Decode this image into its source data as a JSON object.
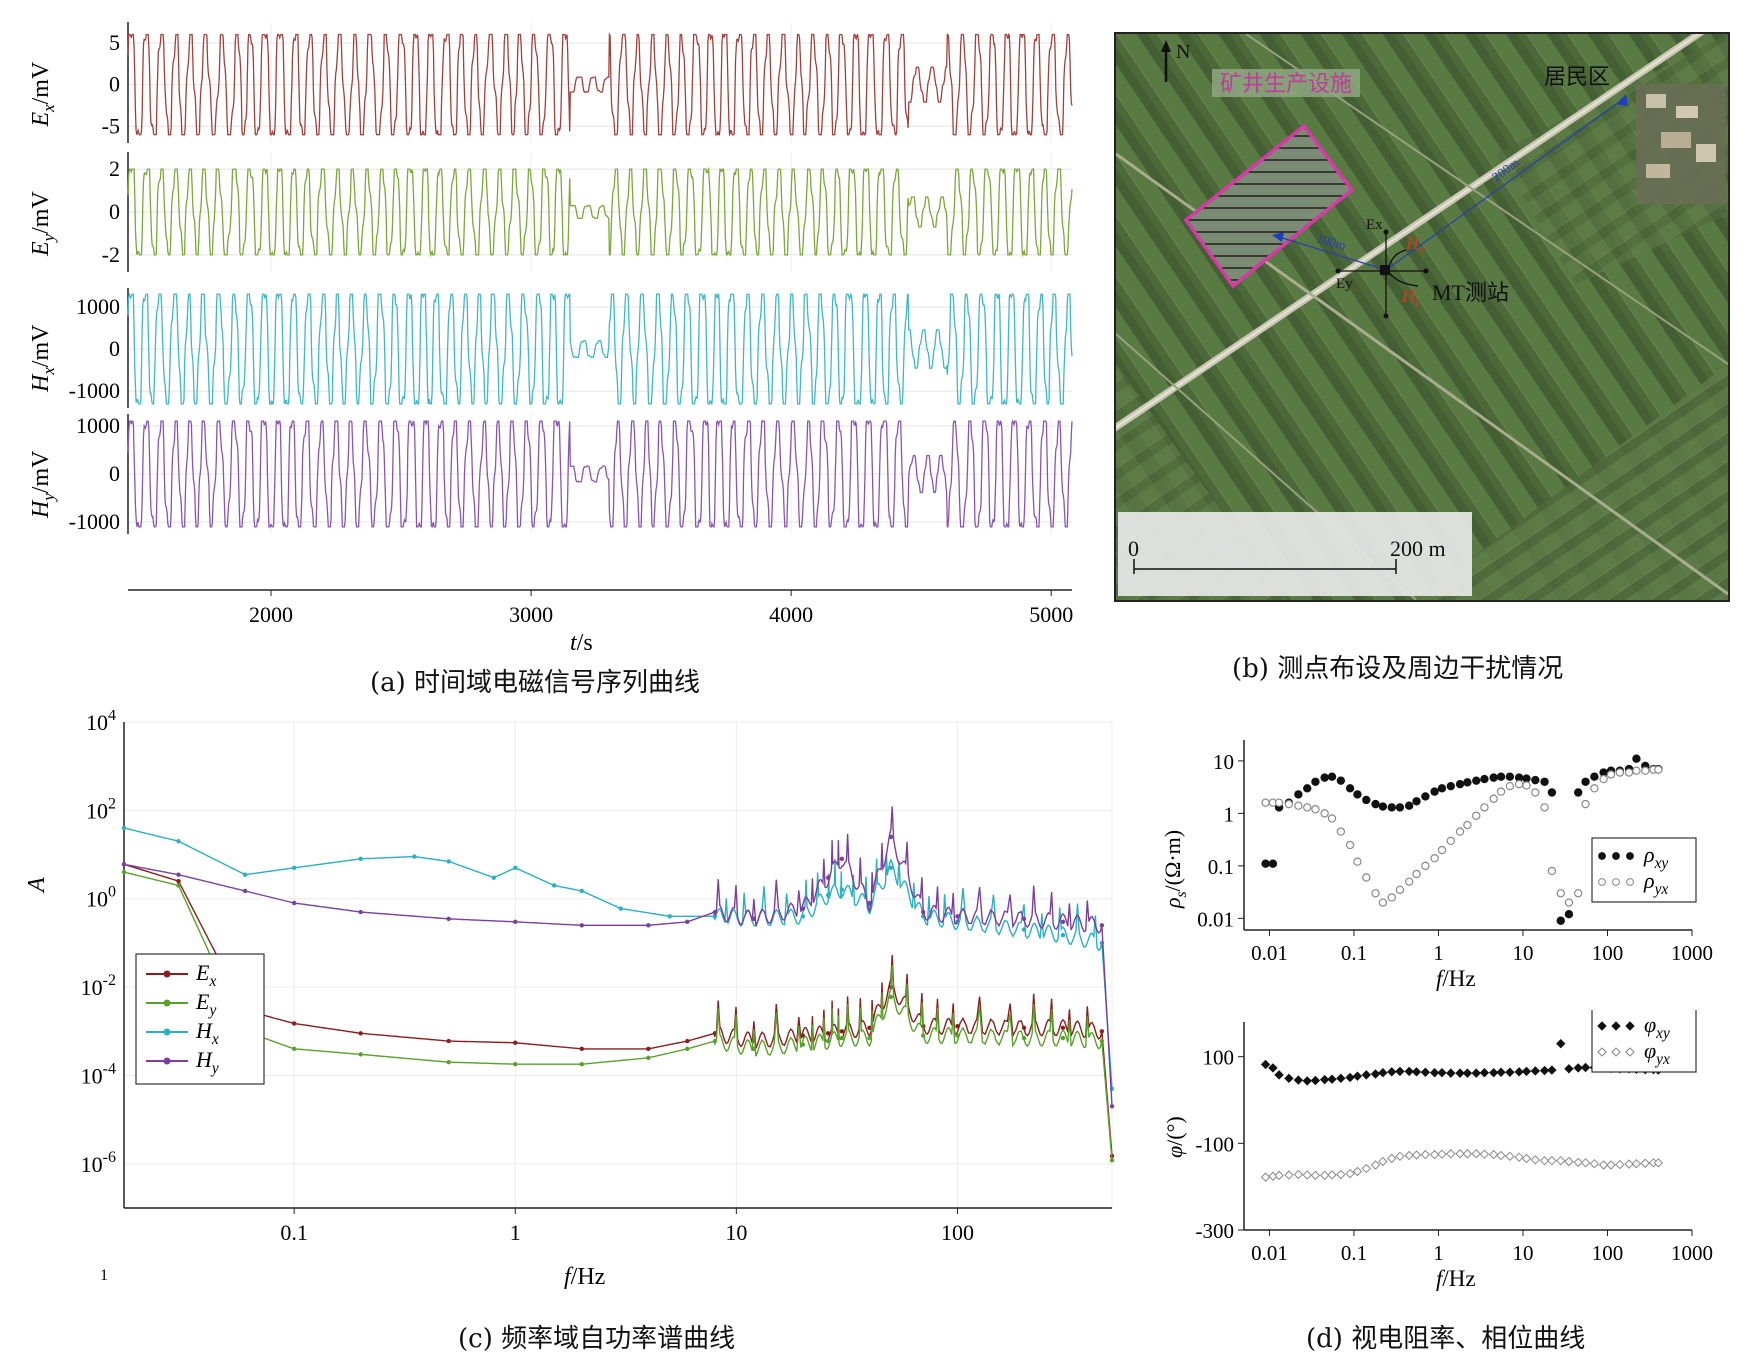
{
  "captions": {
    "a": "(a) 时间域电磁信号序列曲线",
    "b": "(b) 测点布设及周边干扰情况",
    "c": "(c) 频率域自功率谱曲线",
    "d": "(d) 视电阻率、相位曲线"
  },
  "panel_a": {
    "xlabel_italic": "t",
    "xlabel_unit": "/s",
    "x_range": [
      1450,
      5080
    ],
    "x_ticks": [
      "2000",
      "3000",
      "4000",
      "5000"
    ],
    "x_tick_values": [
      2000,
      3000,
      4000,
      5000
    ],
    "traces": [
      {
        "name": "Ex",
        "ylabel_var": "E",
        "ylabel_sub": "x",
        "ylabel_unit": "/mV",
        "ticks": [
          "5",
          "0",
          "-5"
        ],
        "tick_values": [
          5,
          0,
          -5
        ],
        "ylim": [
          -7,
          7.5
        ],
        "amplitude": 6,
        "color": "#a3403a"
      },
      {
        "name": "Ey",
        "ylabel_var": "E",
        "ylabel_sub": "y",
        "ylabel_unit": "/mV",
        "ticks": [
          "2",
          "0",
          "-2"
        ],
        "tick_values": [
          2,
          0,
          -2
        ],
        "ylim": [
          -2.8,
          2.8
        ],
        "amplitude": 2,
        "color": "#7aa83a"
      },
      {
        "name": "Hx",
        "ylabel_var": "H",
        "ylabel_sub": "x",
        "ylabel_unit": "/mV",
        "ticks": [
          "1000",
          "0",
          "-1000"
        ],
        "tick_values": [
          1000,
          0,
          -1000
        ],
        "ylim": [
          -1400,
          1450
        ],
        "amplitude": 1300,
        "color": "#3fb8c6"
      },
      {
        "name": "Hy",
        "ylabel_var": "H",
        "ylabel_sub": "y",
        "ylabel_unit": "/mV",
        "ticks": [
          "1000",
          "0",
          "-1000"
        ],
        "tick_values": [
          1000,
          0,
          -1000
        ],
        "ylim": [
          -1250,
          1250
        ],
        "amplitude": 1100,
        "color": "#8a55b2"
      }
    ]
  },
  "panel_b": {
    "north": "N",
    "facility_label": "矿井生产设施",
    "village_label": "居民区",
    "station_label": "MT测站",
    "dist_100": "100m",
    "dist_200": "200m",
    "ex_label": "Ex",
    "ey_label": "Ey",
    "hx_var": "H",
    "hx_sub": "x",
    "hy_var": "H",
    "hy_sub": "y",
    "scale_start": "0",
    "scale_end": "200 m"
  },
  "chart_data": [
    {
      "type": "line",
      "xlabel_italic": "f",
      "xlabel_unit": "/Hz",
      "ylabel": "A",
      "xscale": "log",
      "yscale": "log",
      "xlim": [
        0.017,
        500
      ],
      "ylim": [
        1e-07,
        10000.0
      ],
      "x_ticks": [
        "0.1",
        "1",
        "10",
        "100"
      ],
      "x_tick_values": [
        0.1,
        1,
        10,
        100
      ],
      "y_ticks": [
        {
          "base": "10",
          "exp": "4",
          "value": 4
        },
        {
          "base": "10",
          "exp": "2",
          "value": 2
        },
        {
          "base": "10",
          "exp": "0",
          "value": 0
        },
        {
          "base": "10",
          "exp": "-2",
          "value": -2
        },
        {
          "base": "10",
          "exp": "-4",
          "value": -4
        },
        {
          "base": "10",
          "exp": "-6",
          "value": -6
        }
      ],
      "stray_label": "1",
      "legend_position": "bottom-left",
      "series": [
        {
          "name_var": "E",
          "name_sub": "x",
          "color": "#8b1d1d",
          "x": [
            0.017,
            0.03,
            0.06,
            0.1,
            0.2,
            0.5,
            1,
            2,
            4,
            6,
            8,
            12,
            20,
            26,
            30,
            40,
            50,
            70,
            100,
            200,
            300,
            450,
            500
          ],
          "y": [
            6,
            2.5,
            0.003,
            0.0015,
            0.0009,
            0.0006,
            0.00055,
            0.0004,
            0.0004,
            0.0006,
            0.0009,
            0.0006,
            0.0008,
            0.0009,
            0.001,
            0.0012,
            0.01,
            0.0013,
            0.0013,
            0.0012,
            0.0012,
            0.001,
            1.5e-06
          ]
        },
        {
          "name_var": "E",
          "name_sub": "y",
          "color": "#5aa02c",
          "x": [
            0.017,
            0.03,
            0.06,
            0.1,
            0.2,
            0.5,
            1,
            2,
            4,
            6,
            8,
            12,
            20,
            26,
            30,
            40,
            50,
            70,
            100,
            200,
            300,
            450,
            500
          ],
          "y": [
            4,
            2.0,
            0.001,
            0.0004,
            0.0003,
            0.0002,
            0.00018,
            0.00018,
            0.00025,
            0.0004,
            0.0006,
            0.0004,
            0.0005,
            0.0006,
            0.0007,
            0.0007,
            0.006,
            0.0008,
            0.0008,
            0.0007,
            0.0007,
            0.0006,
            1.2e-06
          ]
        },
        {
          "name_var": "H",
          "name_sub": "x",
          "color": "#2ab0c2",
          "x": [
            0.017,
            0.03,
            0.06,
            0.1,
            0.2,
            0.35,
            0.5,
            0.8,
            1,
            1.5,
            2,
            3,
            5,
            8,
            12,
            20,
            26,
            30,
            40,
            50,
            70,
            100,
            200,
            300,
            450,
            500
          ],
          "y": [
            40,
            20,
            3.5,
            5,
            8,
            9,
            7,
            3,
            5,
            2,
            1.5,
            0.6,
            0.4,
            0.4,
            0.35,
            0.4,
            1.2,
            1.6,
            0.7,
            5,
            0.4,
            0.3,
            0.2,
            0.15,
            0.1,
            5e-05
          ]
        },
        {
          "name_var": "H",
          "name_sub": "y",
          "color": "#7a3fa0",
          "x": [
            0.017,
            0.03,
            0.06,
            0.1,
            0.2,
            0.5,
            1,
            2,
            4,
            6,
            8,
            12,
            20,
            26,
            30,
            40,
            50,
            70,
            100,
            200,
            300,
            450,
            500
          ],
          "y": [
            6,
            3.5,
            1.5,
            0.8,
            0.5,
            0.35,
            0.3,
            0.25,
            0.25,
            0.3,
            0.5,
            0.35,
            0.6,
            3,
            8,
            0.8,
            25,
            0.5,
            0.4,
            0.35,
            0.3,
            0.25,
            2e-05
          ]
        }
      ]
    },
    {
      "type": "scatter",
      "xlabel_italic": "f",
      "xlabel_unit": "/Hz",
      "ylabel_var": "ρ",
      "ylabel_sub": "s",
      "ylabel_unit": "/(Ω·m)",
      "xscale": "log",
      "yscale": "log",
      "xlim": [
        0.005,
        1000
      ],
      "ylim": [
        0.006,
        25
      ],
      "x_ticks": [
        "0.01",
        "0.1",
        "1",
        "10",
        "100",
        "1000"
      ],
      "x_tick_values": [
        0.01,
        0.1,
        1,
        10,
        100,
        1000
      ],
      "y_ticks": [
        "10",
        "1",
        "0.1",
        "0.01"
      ],
      "y_tick_values": [
        10,
        1,
        0.1,
        0.01
      ],
      "legend_position": "right",
      "series": [
        {
          "name_var": "ρ",
          "name_sub": "xy",
          "marker": "filled-circle",
          "color": "#111111",
          "x": [
            0.009,
            0.011,
            0.013,
            0.017,
            0.022,
            0.028,
            0.035,
            0.045,
            0.055,
            0.07,
            0.09,
            0.11,
            0.14,
            0.18,
            0.22,
            0.28,
            0.35,
            0.45,
            0.55,
            0.7,
            0.9,
            1.1,
            1.4,
            1.8,
            2.2,
            2.8,
            3.5,
            4.5,
            5.5,
            7,
            9,
            11,
            14,
            18,
            22,
            28,
            35,
            45,
            55,
            70,
            90,
            110,
            140,
            180,
            220,
            280,
            350,
            400
          ],
          "y": [
            0.11,
            0.11,
            1.3,
            1.6,
            2.3,
            3,
            4,
            4.8,
            5,
            4.2,
            3,
            2.3,
            1.8,
            1.5,
            1.35,
            1.3,
            1.3,
            1.4,
            1.7,
            2.1,
            2.6,
            3,
            3.3,
            3.6,
            3.9,
            4.2,
            4.5,
            4.8,
            5,
            5,
            4.8,
            4.6,
            4.3,
            4,
            2.5,
            0.009,
            0.012,
            2.5,
            4,
            5,
            6,
            6.5,
            6.5,
            7,
            11,
            8,
            7,
            7
          ]
        },
        {
          "name_var": "ρ",
          "name_sub": "yx",
          "marker": "open-circle",
          "color": "#888888",
          "x": [
            0.009,
            0.011,
            0.013,
            0.017,
            0.022,
            0.028,
            0.035,
            0.045,
            0.055,
            0.07,
            0.09,
            0.11,
            0.14,
            0.18,
            0.22,
            0.28,
            0.35,
            0.45,
            0.55,
            0.7,
            0.9,
            1.1,
            1.4,
            1.8,
            2.2,
            2.8,
            3.5,
            4.5,
            5.5,
            7,
            9,
            11,
            14,
            18,
            22,
            28,
            35,
            45,
            55,
            70,
            90,
            110,
            140,
            180,
            220,
            280,
            350,
            400
          ],
          "y": [
            1.6,
            1.6,
            1.6,
            1.5,
            1.4,
            1.3,
            1.2,
            1,
            0.8,
            0.45,
            0.25,
            0.12,
            0.06,
            0.03,
            0.02,
            0.025,
            0.035,
            0.05,
            0.07,
            0.1,
            0.14,
            0.2,
            0.3,
            0.45,
            0.6,
            0.9,
            1.3,
            1.9,
            2.6,
            3.3,
            3.6,
            3.4,
            2.5,
            1.3,
            0.08,
            0.03,
            0.02,
            0.03,
            1.5,
            3,
            4.5,
            5.5,
            6,
            6,
            6.5,
            6.5,
            6.8,
            6.8
          ]
        }
      ]
    },
    {
      "type": "scatter",
      "xlabel_italic": "f",
      "xlabel_unit": "/Hz",
      "ylabel_var": "φ",
      "ylabel_unit": "/(°)",
      "xscale": "log",
      "xlim": [
        0.005,
        1000
      ],
      "ylim": [
        -300,
        180
      ],
      "x_ticks": [
        "0.01",
        "0.1",
        "1",
        "10",
        "100",
        "1000"
      ],
      "x_tick_values": [
        0.01,
        0.1,
        1,
        10,
        100,
        1000
      ],
      "y_ticks": [
        "100",
        "-100",
        "-300"
      ],
      "y_tick_values": [
        100,
        -100,
        -300
      ],
      "legend_position": "top-right",
      "series": [
        {
          "name_var": "φ",
          "name_sub": "xy",
          "marker": "filled-diamond",
          "color": "#111111",
          "x": [
            0.009,
            0.011,
            0.013,
            0.017,
            0.022,
            0.028,
            0.035,
            0.045,
            0.055,
            0.07,
            0.09,
            0.11,
            0.14,
            0.18,
            0.22,
            0.28,
            0.35,
            0.45,
            0.55,
            0.7,
            0.9,
            1.1,
            1.4,
            1.8,
            2.2,
            2.8,
            3.5,
            4.5,
            5.5,
            7,
            9,
            11,
            14,
            18,
            22,
            28,
            35,
            45,
            55,
            70,
            90,
            110,
            140,
            180,
            220,
            280,
            350,
            400
          ],
          "y": [
            82,
            74,
            58,
            50,
            46,
            44,
            45,
            47,
            48,
            50,
            52,
            55,
            58,
            60,
            63,
            65,
            66,
            66,
            65,
            64,
            63,
            63,
            62,
            62,
            62,
            62,
            63,
            63,
            64,
            64,
            65,
            66,
            67,
            68,
            69,
            130,
            72,
            74,
            75,
            75,
            74,
            73,
            72,
            72,
            71,
            70,
            70,
            69
          ]
        },
        {
          "name_var": "φ",
          "name_sub": "yx",
          "marker": "open-diamond",
          "color": "#888888",
          "x": [
            0.009,
            0.011,
            0.013,
            0.017,
            0.022,
            0.028,
            0.035,
            0.045,
            0.055,
            0.07,
            0.09,
            0.11,
            0.14,
            0.18,
            0.22,
            0.28,
            0.35,
            0.45,
            0.55,
            0.7,
            0.9,
            1.1,
            1.4,
            1.8,
            2.2,
            2.8,
            3.5,
            4.5,
            5.5,
            7,
            9,
            11,
            14,
            18,
            22,
            28,
            35,
            45,
            55,
            70,
            90,
            110,
            140,
            180,
            220,
            280,
            350,
            400
          ],
          "y": [
            -178,
            -176,
            -174,
            -173,
            -172,
            -173,
            -174,
            -174,
            -173,
            -172,
            -170,
            -165,
            -158,
            -150,
            -142,
            -135,
            -130,
            -128,
            -127,
            -126,
            -126,
            -125,
            -124,
            -124,
            -124,
            -124,
            -125,
            -126,
            -128,
            -130,
            -132,
            -135,
            -138,
            -140,
            -140,
            -140,
            -142,
            -144,
            -145,
            -147,
            -150,
            -150,
            -149,
            -148,
            -147,
            -146,
            -145,
            -145
          ]
        }
      ]
    }
  ]
}
